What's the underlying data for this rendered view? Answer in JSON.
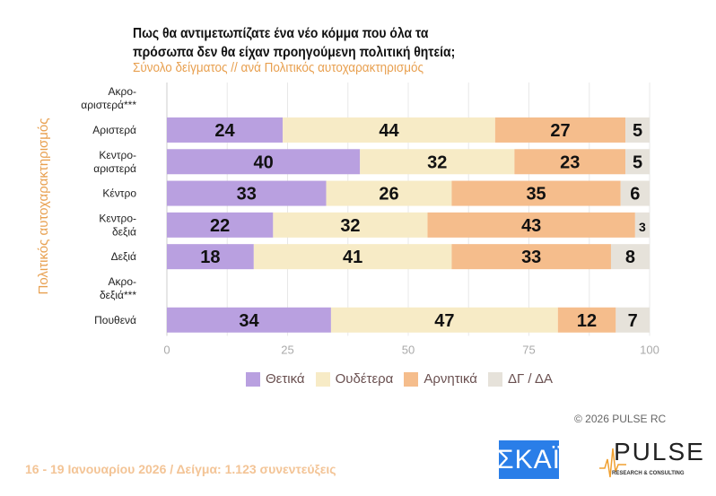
{
  "title": "Πως θα αντιμετωπίζατε ένα νέο κόμμα που όλα τα πρόσωπα δεν θα είχαν προηγούμενη πολιτική θητεία;",
  "subtitle": "Σύνολο δείγματος // ανά Πολιτικός αυτοχαρακτηρισμός",
  "copyright": "©  2026  PULSE RC",
  "footer": "16 - 19 Ιανουαρίου 2026  /  Δείγμα:  1.123 συνεντεύξεις",
  "logos": {
    "skai": "ΣΚΑΪ",
    "pulse": "PULSE",
    "pulse_sub": "RESEARCH & CONSULTING"
  },
  "chart_data": {
    "type": "bar",
    "orientation": "horizontal-stacked",
    "title": "Πως θα αντιμετωπίζατε ένα νέο κόμμα που όλα τα πρόσωπα δεν θα είχαν προηγούμενη πολιτική θητεία;",
    "ylabel": "Πολιτικός αυτοχαρακτηρισμός",
    "xlim": [
      0,
      100
    ],
    "xticks": [
      0,
      25,
      50,
      75,
      100
    ],
    "categories": [
      "Ακρο-\nαριστερά***",
      "Αριστερά",
      "Κεντρο-\nαριστερά",
      "Κέντρο",
      "Κεντρο-\nδεξιά",
      "Δεξιά",
      "Ακρο-\nδεξιά***",
      "Πουθενά"
    ],
    "series": [
      {
        "name": "Θετικά",
        "color": "#b9a0e0",
        "values": [
          null,
          24,
          40,
          33,
          22,
          18,
          null,
          34
        ]
      },
      {
        "name": "Ουδέτερα",
        "color": "#f7ebc6",
        "values": [
          null,
          44,
          32,
          26,
          32,
          41,
          null,
          47
        ]
      },
      {
        "name": "Αρνητικά",
        "color": "#f5bd8c",
        "values": [
          null,
          27,
          23,
          35,
          43,
          33,
          null,
          12
        ]
      },
      {
        "name": "ΔΓ / ΔΑ",
        "color": "#e6e2da",
        "values": [
          null,
          5,
          5,
          6,
          3,
          8,
          null,
          7
        ]
      }
    ],
    "legend": "bottom",
    "grid": true
  }
}
